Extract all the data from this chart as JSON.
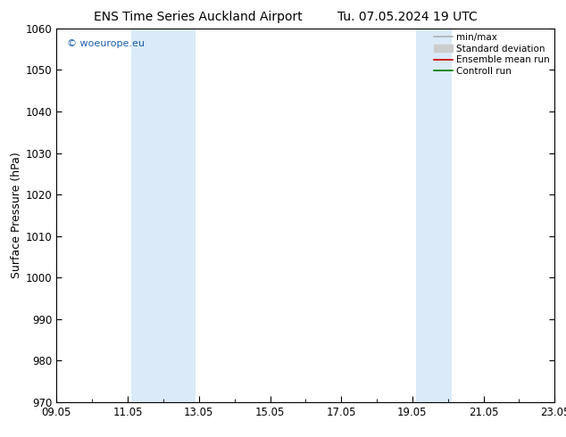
{
  "title_left": "ENS Time Series Auckland Airport",
  "title_right": "Tu. 07.05.2024 19 UTC",
  "ylabel": "Surface Pressure (hPa)",
  "ylim": [
    970,
    1060
  ],
  "yticks": [
    970,
    980,
    990,
    1000,
    1010,
    1020,
    1030,
    1040,
    1050,
    1060
  ],
  "xtick_labels": [
    "09.05",
    "11.05",
    "13.05",
    "15.05",
    "17.05",
    "19.05",
    "21.05",
    "23.05"
  ],
  "xtick_positions": [
    0,
    2,
    4,
    6,
    8,
    10,
    12,
    14
  ],
  "shade_bands": [
    {
      "xmin": 2.1,
      "xmax": 3.9,
      "color": "#daeaf8"
    },
    {
      "xmin": 10.1,
      "xmax": 11.1,
      "color": "#daeaf8"
    }
  ],
  "watermark": "© woeurope.eu",
  "legend_items": [
    {
      "label": "min/max",
      "color": "#b0b0b0",
      "lw": 1.2,
      "style": "line"
    },
    {
      "label": "Standard deviation",
      "color": "#cccccc",
      "lw": 7,
      "style": "band"
    },
    {
      "label": "Ensemble mean run",
      "color": "#cc0000",
      "lw": 1.2,
      "style": "line"
    },
    {
      "label": "Controll run",
      "color": "#007700",
      "lw": 1.2,
      "style": "line"
    }
  ],
  "bg_color": "#ffffff",
  "spine_color": "#000000",
  "xmin": 0,
  "xmax": 14
}
